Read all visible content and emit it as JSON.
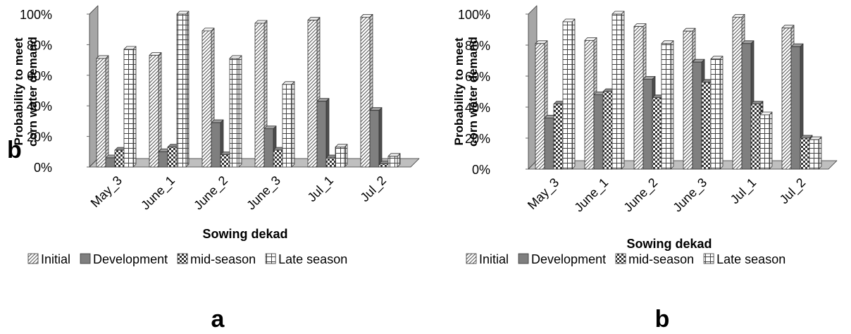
{
  "colors": {
    "axis": "#7f7f7f",
    "wall": "#a6a6a6",
    "development": "#7f7f7f",
    "development_dark": "#4d4d4d",
    "hatch": "#4a4a4a",
    "text": "#000000"
  },
  "chart_data": [
    {
      "type": "bar",
      "panel_label": "a",
      "overlay_text": "b",
      "ylabel": [
        "Probability to meet",
        "corn water demand"
      ],
      "xlabel": "Sowing dekad",
      "categories": [
        "May_3",
        "June_1",
        "June_2",
        "June_3",
        "Jul_1",
        "Jul_2"
      ],
      "yticks": [
        "0%",
        "20%",
        "40%",
        "60%",
        "80%",
        "100%"
      ],
      "ylim": [
        0,
        100
      ],
      "grid": false,
      "legend_position": "bottom",
      "series": [
        {
          "name": "Initial",
          "pattern": "diag",
          "values": [
            71,
            73,
            89,
            94,
            96,
            98
          ]
        },
        {
          "name": "Development",
          "pattern": "solid",
          "values": [
            6,
            10,
            29,
            25,
            43,
            37
          ]
        },
        {
          "name": "mid-season",
          "pattern": "checker",
          "values": [
            11,
            13,
            8,
            11,
            6,
            2
          ]
        },
        {
          "name": "Late season",
          "pattern": "grid",
          "values": [
            77,
            100,
            71,
            54,
            13,
            7
          ]
        }
      ]
    },
    {
      "type": "bar",
      "panel_label": "b",
      "ylabel": [
        "Probability to meet",
        "corn water demand"
      ],
      "xlabel": "Sowing dekad",
      "categories": [
        "May_3",
        "June_1",
        "June_2",
        "June_3",
        "Jul_1",
        "Jul_2"
      ],
      "yticks": [
        "0%",
        "20%",
        "40%",
        "60%",
        "80%",
        "100%"
      ],
      "ylim": [
        0,
        100
      ],
      "grid": false,
      "legend_position": "bottom",
      "series": [
        {
          "name": "Initial",
          "pattern": "diag",
          "values": [
            81,
            83,
            92,
            89,
            98,
            91
          ]
        },
        {
          "name": "Development",
          "pattern": "solid",
          "values": [
            33,
            48,
            58,
            69,
            81,
            79
          ]
        },
        {
          "name": "mid-season",
          "pattern": "checker",
          "values": [
            42,
            50,
            46,
            56,
            42,
            20
          ]
        },
        {
          "name": "Late season",
          "pattern": "grid",
          "values": [
            95,
            100,
            81,
            71,
            35,
            19
          ]
        }
      ]
    }
  ]
}
